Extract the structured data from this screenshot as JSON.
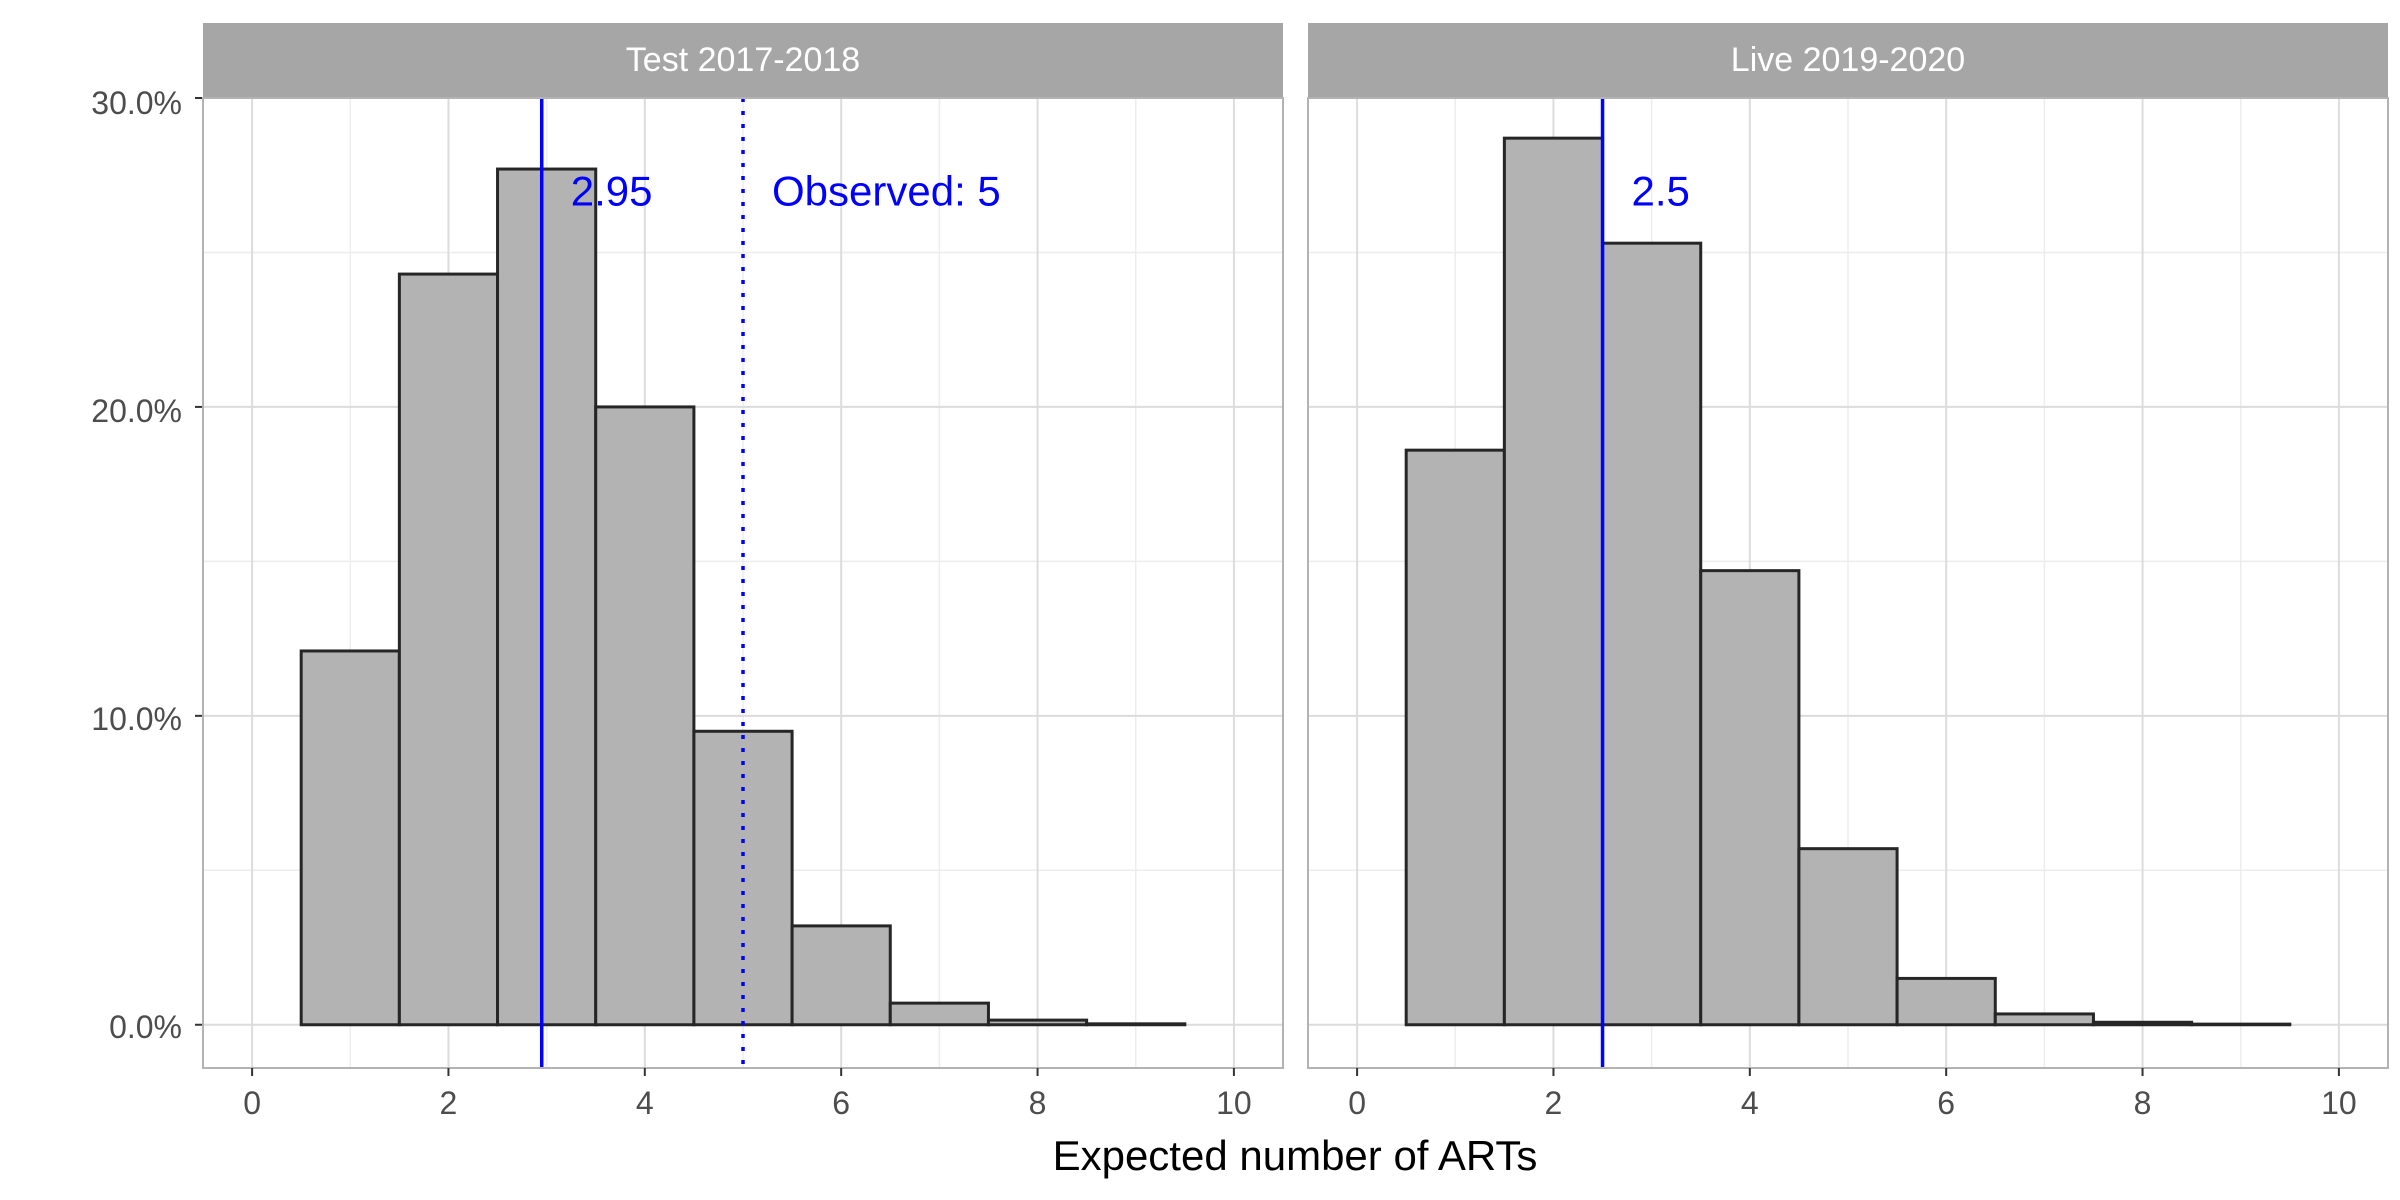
{
  "chart_data": {
    "type": "bar",
    "xlabel": "Expected number of ARTs",
    "ylabel": "",
    "x_ticks": [
      "0",
      "2",
      "4",
      "6",
      "8",
      "10"
    ],
    "y_ticks": [
      "0.0%",
      "10.0%",
      "20.0%",
      "30.0%"
    ],
    "xlim": [
      -0.5,
      10.5
    ],
    "ylim": [
      -1.4,
      30
    ],
    "grid": true,
    "bar_color": "#b3b3b3",
    "bar_outline": "#262626",
    "line_color": "#0000ff",
    "panels": [
      {
        "title": "Test 2017-2018",
        "categories": [
          1,
          2,
          3,
          4,
          5,
          6,
          7,
          8,
          9
        ],
        "values": [
          12.1,
          24.3,
          27.7,
          20.0,
          9.5,
          3.2,
          0.7,
          0.15,
          0.03
        ],
        "unit": "%",
        "vlines": [
          {
            "x": 2.95,
            "label": "2.95",
            "style": "solid"
          },
          {
            "x": 5,
            "label": "Observed: 5",
            "style": "dotted"
          }
        ]
      },
      {
        "title": "Live 2019-2020",
        "categories": [
          1,
          2,
          3,
          4,
          5,
          6,
          7,
          8,
          9
        ],
        "values": [
          18.6,
          28.7,
          25.3,
          14.7,
          5.7,
          1.5,
          0.35,
          0.08,
          0.02
        ],
        "unit": "%",
        "vlines": [
          {
            "x": 2.5,
            "label": "2.5",
            "style": "solid"
          }
        ]
      }
    ]
  }
}
